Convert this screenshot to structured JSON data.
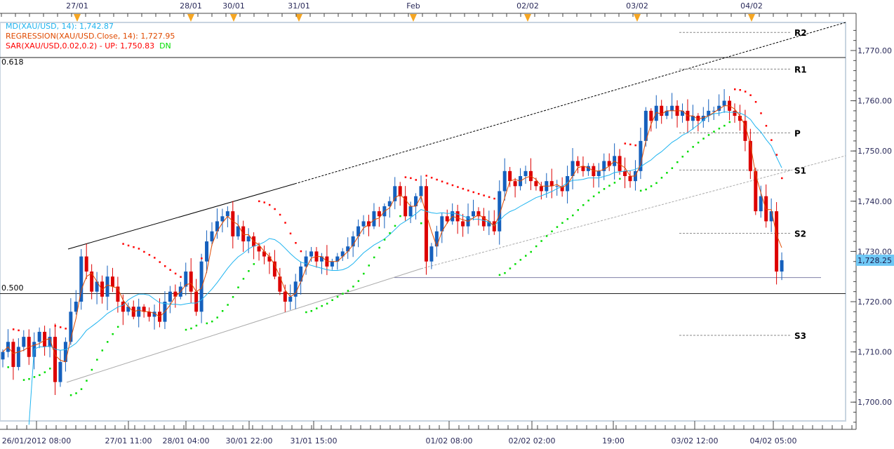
{
  "chart_data": {
    "type": "candlestick",
    "symbol": "XAU/USD",
    "legend": {
      "md": {
        "label": "MD(XAU/USD, 14): 1,742.87",
        "color": "#1fb4f0"
      },
      "regression": {
        "label": "REGRESSION(XAU/USD.Close, 14): 1,727.95",
        "color": "#e04a00"
      },
      "sar": {
        "label": "SAR(XAU/USD,0.02,0.2) -  UP: 1,750.83",
        "dn": "DN",
        "color": "#ff0000",
        "dn_color": "#00dd00"
      }
    },
    "ylim": [
      1695,
      1776
    ],
    "yticks": [
      1700,
      1710,
      1720,
      1730,
      1740,
      1750,
      1760,
      1770
    ],
    "ytick_labels": [
      "1,700.00",
      "1,710.00",
      "1,720.00",
      "1,730.00",
      "1,740.00",
      "1,750.00",
      "1,760.00",
      "1,770.00"
    ],
    "last_price": 1728.25,
    "last_price_label": "1,728.25",
    "top_axis_labels": [
      "27/01",
      "28/01",
      "30/01",
      "31/01",
      "Feb",
      "02/02",
      "03/02",
      "04/02"
    ],
    "bottom_axis_labels": [
      "26/01/2012 08:00",
      "27/01 11:00",
      "28/01 04:00",
      "30/01 22:00",
      "31/01 15:00",
      "01/02 08:00",
      "02/02 02:00",
      "19:00",
      "03/02 12:00",
      "04/02 05:00"
    ],
    "fib_levels": [
      {
        "label": "0.618",
        "price": 1768.6
      },
      {
        "label": "0.500",
        "price": 1721.6
      }
    ],
    "pivots": [
      {
        "label": "R2",
        "price": 1773.6
      },
      {
        "label": "R1",
        "price": 1766.3
      },
      {
        "label": "P",
        "price": 1753.6
      },
      {
        "label": "S1",
        "price": 1746.2
      },
      {
        "label": "S2",
        "price": 1733.6
      },
      {
        "label": "S3",
        "price": 1713.3
      }
    ],
    "support_price": 1724.8,
    "closes": [
      1710,
      1712,
      1707,
      1711,
      1713,
      1709,
      1712,
      1714,
      1711,
      1713,
      1704,
      1708,
      1712,
      1718,
      1720,
      1729,
      1726,
      1722,
      1724,
      1721,
      1725,
      1723,
      1720,
      1718,
      1719,
      1717,
      1719,
      1718,
      1717,
      1718,
      1716,
      1720,
      1722,
      1721,
      1723,
      1726,
      1722,
      1718,
      1728,
      1732,
      1734,
      1736,
      1737,
      1738,
      1733,
      1735,
      1732,
      1733,
      1731,
      1730,
      1729,
      1728,
      1725,
      1722,
      1720,
      1721,
      1724,
      1727,
      1729,
      1730,
      1728,
      1729,
      1727,
      1728,
      1729,
      1730,
      1731,
      1733,
      1735,
      1736,
      1735,
      1738,
      1737,
      1739,
      1740,
      1743,
      1741,
      1737,
      1739,
      1741,
      1743,
      1728,
      1731,
      1734,
      1737,
      1736,
      1738,
      1736,
      1735,
      1737,
      1738,
      1737,
      1735,
      1736,
      1734,
      1742,
      1746,
      1744,
      1743,
      1745,
      1746,
      1744,
      1743,
      1742,
      1744,
      1743,
      1743,
      1742,
      1745,
      1748,
      1747,
      1746,
      1747,
      1745,
      1746,
      1748,
      1747,
      1749,
      1746,
      1745,
      1744,
      1746,
      1752,
      1758,
      1756,
      1759,
      1757,
      1758,
      1759,
      1757,
      1758,
      1756,
      1757,
      1756,
      1757,
      1758,
      1758,
      1759,
      1760,
      1758,
      1757,
      1756,
      1752,
      1746,
      1738,
      1741,
      1736,
      1738,
      1726,
      1728.25
    ]
  },
  "colors": {
    "up": "#1560bd",
    "down": "#dd0000",
    "axis_text": "#2a2a5a",
    "price_tag": "#6fc8f5"
  }
}
